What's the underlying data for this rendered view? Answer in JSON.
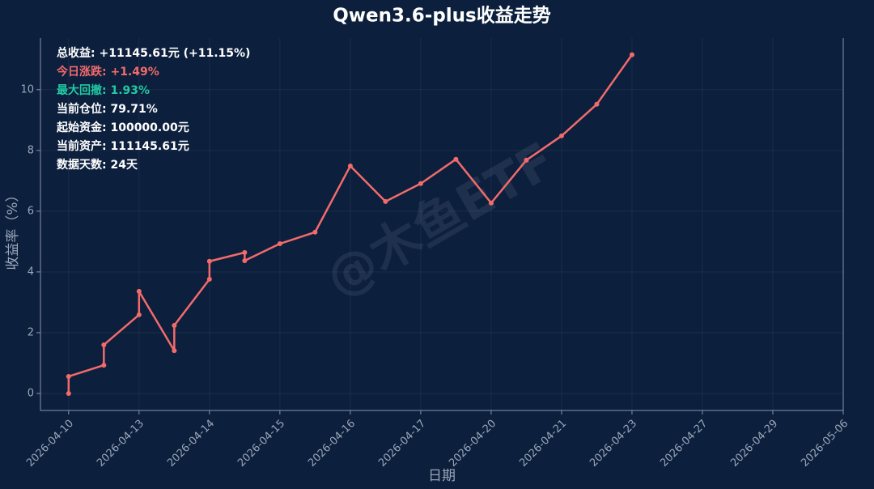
{
  "chart_data": {
    "type": "line",
    "title": "Qwen3.6-plus收益走势",
    "x_label": "日期",
    "y_label": "收益率（%）",
    "watermark": "@木鱼ETF",
    "annotations": [
      {
        "text": "总收益: +11145.61元 (+11.15%)",
        "color": "#ffffff"
      },
      {
        "text": "今日涨跌: +1.49%",
        "color": "#f26b6b"
      },
      {
        "text": "最大回撤: 1.93%",
        "color": "#22c9a2"
      },
      {
        "text": "当前仓位: 79.71%",
        "color": "#ffffff"
      },
      {
        "text": "起始资金: 100000.00元",
        "color": "#ffffff"
      },
      {
        "text": "当前资产: 111145.61元",
        "color": "#ffffff"
      },
      {
        "text": "数据天数: 24天",
        "color": "#ffffff"
      }
    ],
    "x": [
      0,
      0,
      0.5,
      0.5,
      1,
      1,
      1.5,
      1.5,
      2,
      2,
      2.5,
      2.5,
      3,
      3.5,
      4,
      4.5,
      5,
      5.5,
      6,
      6.5,
      7,
      7.5,
      8
    ],
    "series": [
      {
        "name": "收益率",
        "color": "#f26b6b",
        "values": [
          0,
          0.56,
          0.93,
          1.6,
          2.59,
          3.36,
          1.41,
          2.24,
          3.76,
          4.35,
          4.64,
          4.37,
          4.93,
          5.31,
          7.49,
          6.32,
          6.91,
          7.71,
          6.27,
          7.68,
          8.48,
          9.52,
          11.15
        ]
      }
    ],
    "xlim": [
      -0.4,
      11
    ],
    "xticks": [
      {
        "value": 0,
        "label": "2026-04-10"
      },
      {
        "value": 1,
        "label": "2026-04-13"
      },
      {
        "value": 2,
        "label": "2026-04-14"
      },
      {
        "value": 3,
        "label": "2026-04-15"
      },
      {
        "value": 4,
        "label": "2026-04-16"
      },
      {
        "value": 5,
        "label": "2026-04-17"
      },
      {
        "value": 6,
        "label": "2026-04-20"
      },
      {
        "value": 7,
        "label": "2026-04-21"
      },
      {
        "value": 8,
        "label": "2026-04-23"
      },
      {
        "value": 9,
        "label": "2026-04-27"
      },
      {
        "value": 10,
        "label": "2026-04-29"
      },
      {
        "value": 11,
        "label": "2026-05-06"
      }
    ],
    "ylim": [
      -0.56,
      11.7
    ],
    "yticks": [
      0,
      2,
      4,
      6,
      8,
      10
    ],
    "grid": true
  }
}
